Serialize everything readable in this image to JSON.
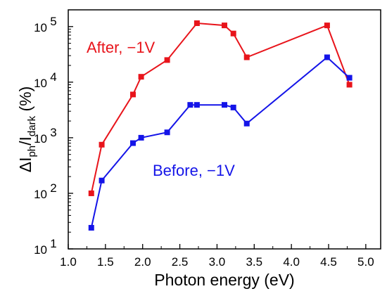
{
  "chart_data": {
    "type": "line",
    "xlabel": "Photon energy (eV)",
    "ylabel": {
      "prefix": "ΔI",
      "sub1": "ph",
      "mid": "/I",
      "sub2": "dark",
      "suffix": " (%)"
    },
    "xlim": [
      1.0,
      5.2
    ],
    "ylim": [
      10,
      200000
    ],
    "y_scale": "log",
    "x_ticks": [
      1.0,
      1.5,
      2.0,
      2.5,
      3.0,
      3.5,
      4.0,
      4.5,
      5.0
    ],
    "x_tick_labels": [
      "1.0",
      "1.5",
      "2.0",
      "2.5",
      "3.0",
      "3.5",
      "4.0",
      "4.5",
      "5.0"
    ],
    "y_ticks": [
      10,
      100,
      1000,
      10000,
      100000
    ],
    "y_tick_labels": [
      {
        "base": "10",
        "exp": "1"
      },
      {
        "base": "10",
        "exp": "2"
      },
      {
        "base": "10",
        "exp": "3"
      },
      {
        "base": "10",
        "exp": "4"
      },
      {
        "base": "10",
        "exp": "5"
      }
    ],
    "grid": false,
    "legend": "inline labels",
    "series": [
      {
        "name": "After, −1V",
        "color": "#e8141b",
        "x": [
          1.31,
          1.45,
          1.87,
          1.98,
          2.33,
          2.73,
          3.1,
          3.22,
          3.4,
          4.48,
          4.78
        ],
        "y": [
          100,
          750,
          6000,
          12500,
          25000,
          115000,
          105000,
          75000,
          28000,
          105000,
          9000
        ]
      },
      {
        "name": "Before, −1V",
        "color": "#1414e8",
        "x": [
          1.31,
          1.45,
          1.87,
          1.98,
          2.33,
          2.64,
          2.73,
          3.1,
          3.22,
          3.4,
          4.48,
          4.78
        ],
        "y": [
          24,
          170,
          800,
          1000,
          1250,
          3900,
          3900,
          3900,
          3500,
          1800,
          28000,
          12000
        ]
      }
    ]
  }
}
